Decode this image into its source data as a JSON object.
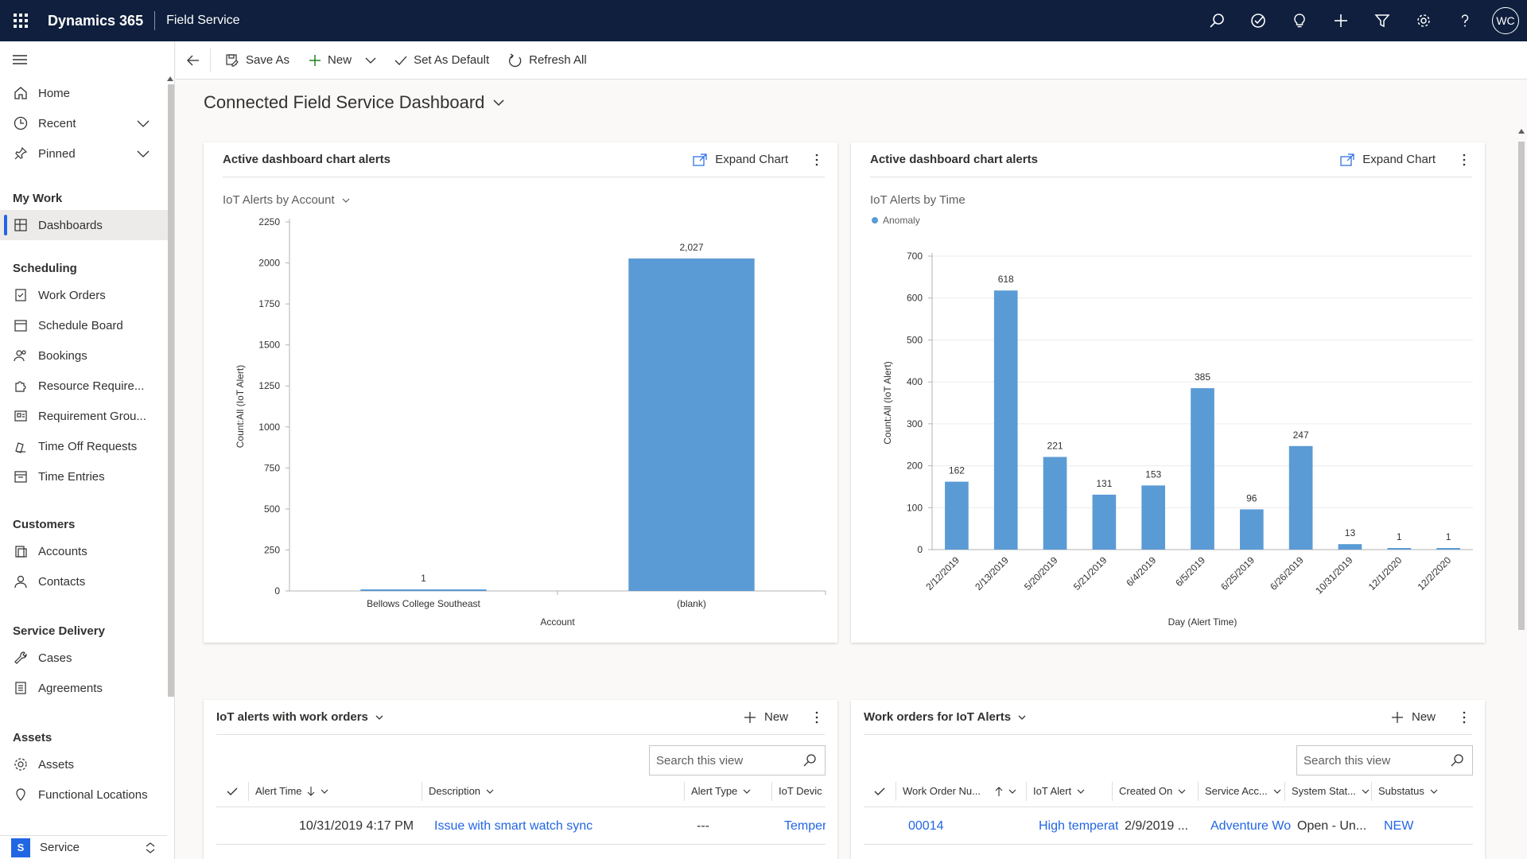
{
  "topbar": {
    "brand": "Dynamics 365",
    "app_name": "Field Service",
    "icons": [
      "search-icon",
      "task-icon",
      "lightbulb-icon",
      "plus-icon",
      "filter-icon",
      "gear-icon",
      "help-icon"
    ],
    "user_initials": "WC"
  },
  "sidebar": {
    "items_top": [
      {
        "label": "Home",
        "icon": "home-icon"
      },
      {
        "label": "Recent",
        "icon": "clock-icon",
        "expandable": true
      },
      {
        "label": "Pinned",
        "icon": "pin-icon",
        "expandable": true
      }
    ],
    "groups": [
      {
        "title": "My Work",
        "items": [
          {
            "label": "Dashboards",
            "icon": "dashboard-icon",
            "active": true
          }
        ]
      },
      {
        "title": "Scheduling",
        "items": [
          {
            "label": "Work Orders",
            "icon": "work-order-icon"
          },
          {
            "label": "Schedule Board",
            "icon": "calendar-icon"
          },
          {
            "label": "Bookings",
            "icon": "people-icon"
          },
          {
            "label": "Resource Require...",
            "icon": "puzzle-icon"
          },
          {
            "label": "Requirement Grou...",
            "icon": "group-icon"
          },
          {
            "label": "Time Off Requests",
            "icon": "time-off-icon"
          },
          {
            "label": "Time Entries",
            "icon": "calendar-icon"
          }
        ]
      },
      {
        "title": "Customers",
        "items": [
          {
            "label": "Accounts",
            "icon": "account-icon"
          },
          {
            "label": "Contacts",
            "icon": "person-icon"
          }
        ]
      },
      {
        "title": "Service Delivery",
        "items": [
          {
            "label": "Cases",
            "icon": "wrench-icon"
          },
          {
            "label": "Agreements",
            "icon": "document-icon"
          }
        ]
      },
      {
        "title": "Assets",
        "items": [
          {
            "label": "Assets",
            "icon": "asset-icon"
          },
          {
            "label": "Functional Locations",
            "icon": "location-icon"
          }
        ]
      }
    ],
    "area": {
      "badge": "S",
      "label": "Service"
    }
  },
  "commandbar": {
    "save_as": "Save As",
    "new": "New",
    "set_default": "Set As Default",
    "refresh": "Refresh All"
  },
  "page": {
    "title": "Connected Field Service Dashboard"
  },
  "cards": {
    "chart1": {
      "header": "Active dashboard chart alerts",
      "expand": "Expand Chart",
      "view": "IoT Alerts by Account"
    },
    "chart2": {
      "header": "Active dashboard chart alerts",
      "expand": "Expand Chart",
      "view": "IoT Alerts by Time",
      "legend": "Anomaly"
    },
    "grid1": {
      "title": "IoT alerts with work orders",
      "new": "New",
      "search_placeholder": "Search this view",
      "columns": [
        "Alert Time",
        "Description",
        "Alert Type",
        "IoT Devic"
      ],
      "rows": [
        {
          "alert_time": "10/31/2019 4:17 PM",
          "description": "Issue with smart watch sync",
          "alert_type": "---",
          "device": "Temper"
        }
      ]
    },
    "grid2": {
      "title": "Work orders for IoT Alerts",
      "new": "New",
      "search_placeholder": "Search this view",
      "columns": [
        "Work Order Nu...",
        "IoT Alert",
        "Created On",
        "Service Acc...",
        "System Stat...",
        "Substatus"
      ],
      "rows": [
        {
          "number": "00014",
          "iot_alert": "High temperatu",
          "created_on": "2/9/2019 ...",
          "service_account": "Adventure Wor",
          "system_status": "Open - Un...",
          "substatus": "NEW"
        }
      ]
    }
  },
  "chart_data": [
    {
      "type": "bar",
      "categories": [
        "Bellows College Southeast",
        "(blank)"
      ],
      "values": [
        1,
        2027
      ],
      "data_labels": [
        "1",
        "2,027"
      ],
      "xlabel": "Account",
      "ylabel": "Count:All (IoT Alert)",
      "ylim": [
        0,
        2250
      ],
      "yticks": [
        0,
        250,
        500,
        750,
        1000,
        1250,
        1500,
        1750,
        2000,
        2250
      ],
      "bar_color": "#5b9bd5"
    },
    {
      "type": "bar",
      "categories": [
        "2/12/2019",
        "2/13/2019",
        "5/20/2019",
        "5/21/2019",
        "6/4/2019",
        "6/5/2019",
        "6/25/2019",
        "6/26/2019",
        "10/31/2019",
        "12/1/2020",
        "12/2/2020"
      ],
      "series": [
        {
          "name": "Anomaly",
          "values": [
            162,
            618,
            221,
            131,
            153,
            385,
            96,
            247,
            13,
            1,
            1
          ]
        }
      ],
      "xlabel": "Day (Alert Time)",
      "ylabel": "Count:All (IoT Alert)",
      "ylim": [
        0,
        700
      ],
      "yticks": [
        0,
        100,
        200,
        300,
        400,
        500,
        600,
        700
      ],
      "bar_color": "#5b9bd5"
    }
  ]
}
